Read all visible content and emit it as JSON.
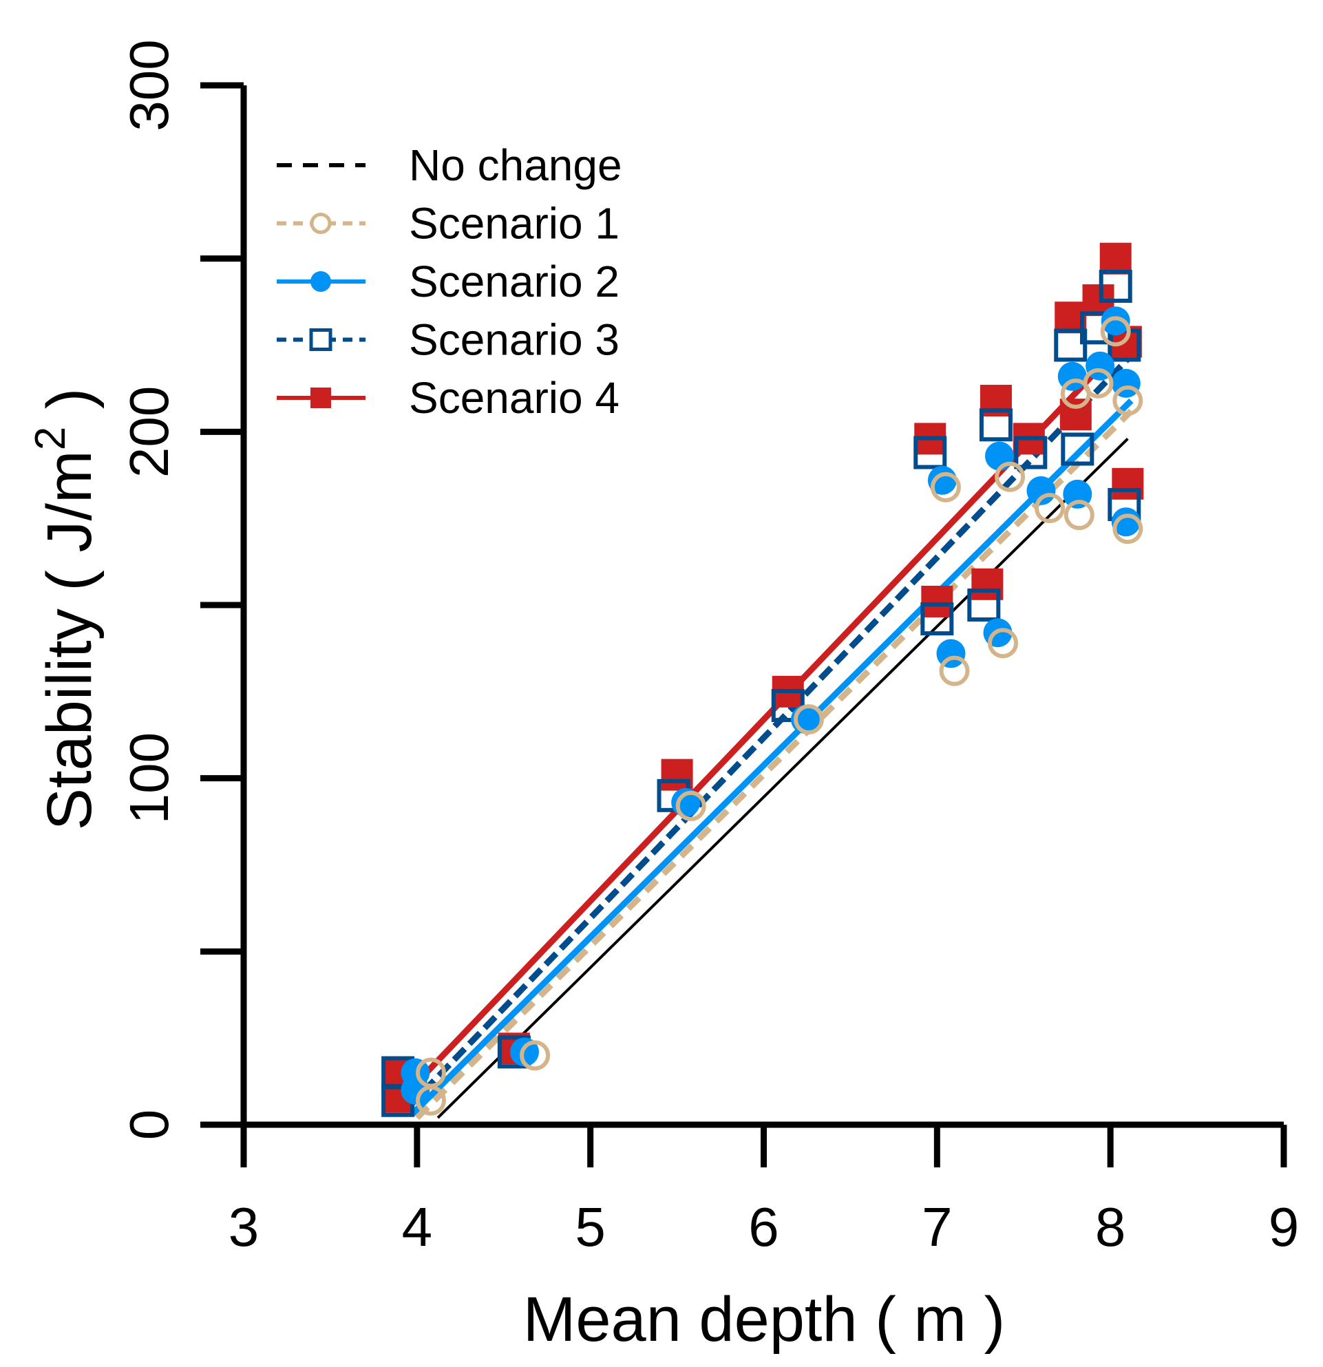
{
  "chart_data": {
    "type": "scatter",
    "xlabel": "Mean depth ( m )",
    "ylabel": "Stability ( J/m",
    "ylabel_sup": "2",
    "ylabel_end": " )",
    "xlim": [
      3,
      9
    ],
    "ylim": [
      0,
      300
    ],
    "xticks": [
      3,
      4,
      5,
      6,
      7,
      8,
      9
    ],
    "xtick_labels": [
      "3",
      "4",
      "5",
      "6",
      "7",
      "8",
      "9"
    ],
    "yticks": [
      0,
      50,
      100,
      150,
      200,
      250,
      300
    ],
    "ytick_labels": [
      "0",
      "",
      "100",
      "",
      "200",
      "",
      "300"
    ],
    "grid": false,
    "legend_position": "top-left",
    "colors": {
      "no_change": "#000000",
      "s1": "#D4B48A",
      "s2": "#0093F5",
      "s3": "#004C8C",
      "s4": "#CC1F20"
    },
    "legend": [
      "No change",
      "Scenario 1",
      "Scenario 2",
      "Scenario 3",
      "Scenario 4"
    ],
    "series": [
      {
        "name": "Scenario 1",
        "marker": "open-circle",
        "color": "#D4B48A",
        "x": [
          4.08,
          4.08,
          4.68,
          5.58,
          6.26,
          7.05,
          7.1,
          7.38,
          7.42,
          7.65,
          7.8,
          7.82,
          7.93,
          8.03,
          8.1,
          8.1
        ],
        "y": [
          15,
          7,
          20,
          92,
          117,
          184,
          131,
          139,
          187,
          178,
          211,
          176,
          214,
          229,
          209,
          172
        ],
        "fit": [
          [
            4.0,
            2
          ],
          [
            8.12,
            206
          ]
        ]
      },
      {
        "name": "Scenario 2",
        "marker": "filled-circle",
        "color": "#0093F5",
        "x": [
          3.99,
          3.99,
          4.62,
          5.55,
          6.24,
          7.03,
          7.08,
          7.35,
          7.36,
          7.6,
          7.78,
          7.81,
          7.94,
          8.03,
          8.09,
          8.09
        ],
        "y": [
          15,
          10,
          21,
          93,
          117,
          186,
          136,
          142,
          193,
          183,
          216,
          182,
          219,
          232,
          214,
          174
        ],
        "fit": [
          [
            3.97,
            3
          ],
          [
            8.12,
            209
          ]
        ]
      },
      {
        "name": "Scenario 3",
        "marker": "open-square",
        "color": "#004C8C",
        "x": [
          3.89,
          3.89,
          4.56,
          5.48,
          6.14,
          6.96,
          7.0,
          7.27,
          7.34,
          7.54,
          7.77,
          7.81,
          7.92,
          8.03,
          8.08,
          8.08
        ],
        "y": [
          15,
          7,
          21,
          95,
          121,
          194,
          146,
          150,
          202,
          194,
          225,
          195,
          230,
          242,
          225,
          179
        ],
        "fit": [
          [
            3.95,
            5
          ],
          [
            8.1,
            221
          ]
        ]
      },
      {
        "name": "Scenario 4",
        "marker": "filled-square",
        "color": "#CC1F20",
        "x": [
          3.89,
          3.89,
          4.56,
          5.5,
          6.14,
          6.96,
          7.0,
          7.29,
          7.34,
          7.53,
          7.77,
          7.8,
          7.93,
          8.03,
          8.09,
          8.1
        ],
        "y": [
          15,
          8,
          22,
          101,
          125,
          198,
          151,
          156,
          209,
          198,
          233,
          205,
          238,
          250,
          226,
          185
        ],
        "fit": [
          [
            3.92,
            8
          ],
          [
            8.12,
            228
          ]
        ]
      },
      {
        "name": "No change",
        "marker": "none",
        "color": "#000000",
        "fit": [
          [
            4.12,
            2
          ],
          [
            8.1,
            198
          ]
        ]
      }
    ]
  }
}
